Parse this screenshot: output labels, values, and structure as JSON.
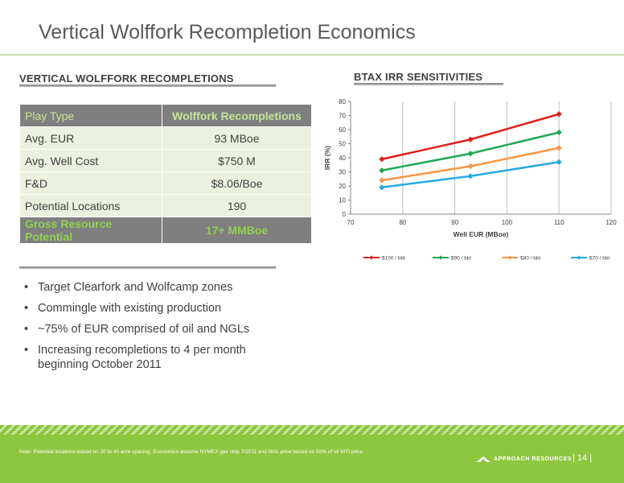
{
  "slide": {
    "title": "Vertical Wolffork Recompletion Economics",
    "page_number": "| 14 |"
  },
  "left": {
    "heading": "VERTICAL WOLFFORK RECOMPLETIONS",
    "table": {
      "header": [
        "Play Type",
        "Wolffork Recompletions"
      ],
      "rows": [
        [
          "Avg. EUR",
          "93 MBoe"
        ],
        [
          "Avg. Well Cost",
          "$750 M"
        ],
        [
          "F&D",
          "$8.06/Boe"
        ],
        [
          "Potential Locations",
          "190"
        ]
      ],
      "footer": [
        "Gross Resource Potential",
        "17+ MMBoe"
      ]
    },
    "bullets": [
      "Target Clearfork and Wolfcamp zones",
      "Commingle with existing production",
      "~75% of EUR comprised of oil and NGLs",
      "Increasing recompletions to 4 per month beginning October 2011"
    ]
  },
  "right": {
    "heading": "BTAX IRR SENSITIVITIES"
  },
  "chart_data": {
    "type": "line",
    "title": "",
    "xlabel": "Well EUR (MBoe)",
    "ylabel": "IRR (%)",
    "xlim": [
      70,
      120
    ],
    "ylim": [
      0,
      80
    ],
    "x_ticks": [
      "70",
      "80",
      "90",
      "100",
      "110",
      "120"
    ],
    "y_ticks": [
      "0",
      "10",
      "20",
      "30",
      "40",
      "50",
      "60",
      "70",
      "80"
    ],
    "grid": "vertical",
    "legend": "bottom",
    "x": [
      76,
      93,
      110
    ],
    "series": [
      {
        "name": "$100 / bbl",
        "color": "#e0201b",
        "values": [
          39,
          53,
          71
        ]
      },
      {
        "name": "$90 / bbl",
        "color": "#1fa84f",
        "values": [
          31,
          43,
          58
        ]
      },
      {
        "name": "$80 / bbl",
        "color": "#f79646",
        "values": [
          24,
          34,
          47
        ]
      },
      {
        "name": "$70 / bbl",
        "color": "#27aae1",
        "values": [
          19,
          27,
          37
        ]
      }
    ]
  },
  "footer": {
    "note": "Note: Potential locations based on 20 to 40 acre spacing.  Economics assume NYMEX gas strip 7/2011 and NGL price based on 50% of oil WTI price.",
    "company": "APPROACH RESOURCES"
  }
}
